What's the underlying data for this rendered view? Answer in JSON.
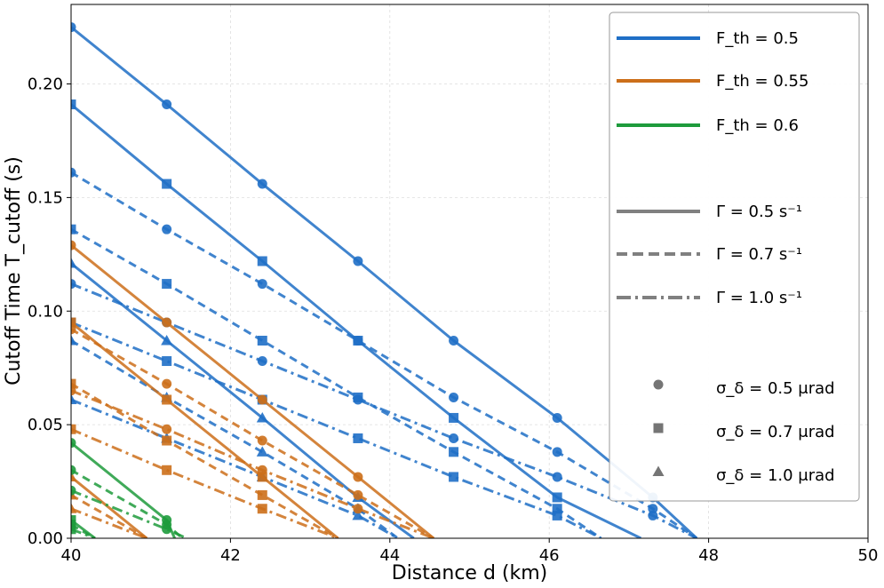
{
  "chart_data": {
    "type": "line",
    "xlabel": "Distance d (km)",
    "ylabel": "Cutoff Time T_cutoff (s)",
    "xlim": [
      40,
      50
    ],
    "ylim": [
      0,
      0.235
    ],
    "xticks": [
      40,
      42,
      44,
      46,
      48,
      50
    ],
    "xtick_labels": [
      "40",
      "42",
      "44",
      "46",
      "48",
      "50"
    ],
    "yticks": [
      0,
      0.05,
      0.1,
      0.15,
      0.2
    ],
    "ytick_labels": [
      "0.00",
      "0.05",
      "0.10",
      "0.15",
      "0.20"
    ],
    "grid": true,
    "legend_position": "top-right",
    "colors": {
      "F_th = 0.5": "#1f6fc6",
      "F_th = 0.55": "#cc6f1a",
      "F_th = 0.6": "#1e9b3c",
      "legend_gray": "#808080"
    },
    "legend": {
      "color_entries": [
        {
          "label": "F_th = 0.5",
          "color": "#1f6fc6"
        },
        {
          "label": "F_th = 0.55",
          "color": "#cc6f1a"
        },
        {
          "label": "F_th = 0.6",
          "color": "#1e9b3c"
        }
      ],
      "style_entries": [
        {
          "label": "Γ = 0.5 s⁻¹",
          "dash": "solid"
        },
        {
          "label": "Γ = 0.7 s⁻¹",
          "dash": "dashed"
        },
        {
          "label": "Γ = 1.0 s⁻¹",
          "dash": "dashdot"
        }
      ],
      "marker_entries": [
        {
          "label": "σ_δ = 0.5 μrad",
          "marker": "circle"
        },
        {
          "label": "σ_δ = 0.7 μrad",
          "marker": "square"
        },
        {
          "label": "σ_δ = 1.0 μrad",
          "marker": "triangle"
        }
      ]
    },
    "series": [
      {
        "fth": "0.5",
        "gamma": "0.5",
        "sigma": "0.5",
        "x": [
          40,
          41.2,
          42.4,
          43.6,
          44.8,
          46.1,
          47.3,
          47.85
        ],
        "y": [
          0.225,
          0.191,
          0.156,
          0.122,
          0.087,
          0.053,
          0.018,
          0
        ]
      },
      {
        "fth": "0.5",
        "gamma": "0.5",
        "sigma": "0.7",
        "x": [
          40,
          41.2,
          42.4,
          43.6,
          44.8,
          46.1,
          47.15
        ],
        "y": [
          0.191,
          0.156,
          0.122,
          0.087,
          0.053,
          0.018,
          0
        ]
      },
      {
        "fth": "0.5",
        "gamma": "0.5",
        "sigma": "1.0",
        "x": [
          40,
          41.2,
          42.4,
          43.6,
          44.3
        ],
        "y": [
          0.121,
          0.087,
          0.053,
          0.018,
          0
        ]
      },
      {
        "fth": "0.5",
        "gamma": "0.7",
        "sigma": "0.5",
        "x": [
          40,
          41.2,
          42.4,
          43.6,
          44.8,
          46.1,
          47.3,
          47.85
        ],
        "y": [
          0.161,
          0.136,
          0.112,
          0.087,
          0.062,
          0.038,
          0.013,
          0
        ]
      },
      {
        "fth": "0.5",
        "gamma": "0.7",
        "sigma": "0.7",
        "x": [
          40,
          41.2,
          42.4,
          43.6,
          44.8,
          46.1,
          46.65
        ],
        "y": [
          0.136,
          0.112,
          0.087,
          0.062,
          0.038,
          0.013,
          0
        ]
      },
      {
        "fth": "0.5",
        "gamma": "0.7",
        "sigma": "1.0",
        "x": [
          40,
          41.2,
          42.4,
          43.6,
          44.1
        ],
        "y": [
          0.087,
          0.062,
          0.038,
          0.013,
          0
        ]
      },
      {
        "fth": "0.5",
        "gamma": "1.0",
        "sigma": "0.5",
        "x": [
          40,
          41.2,
          42.4,
          43.6,
          44.8,
          46.1,
          47.3,
          47.85
        ],
        "y": [
          0.112,
          0.095,
          0.078,
          0.061,
          0.044,
          0.027,
          0.01,
          0
        ]
      },
      {
        "fth": "0.5",
        "gamma": "1.0",
        "sigma": "0.7",
        "x": [
          40,
          41.2,
          42.4,
          43.6,
          44.8,
          46.1,
          46.65
        ],
        "y": [
          0.095,
          0.078,
          0.061,
          0.044,
          0.027,
          0.01,
          0
        ]
      },
      {
        "fth": "0.5",
        "gamma": "1.0",
        "sigma": "1.0",
        "x": [
          40,
          41.2,
          42.4,
          43.6,
          44.1
        ],
        "y": [
          0.061,
          0.044,
          0.027,
          0.01,
          0
        ]
      },
      {
        "fth": "0.55",
        "gamma": "0.5",
        "sigma": "0.5",
        "x": [
          40,
          41.2,
          42.4,
          43.6,
          44.55
        ],
        "y": [
          0.129,
          0.095,
          0.061,
          0.027,
          0
        ]
      },
      {
        "fth": "0.55",
        "gamma": "0.5",
        "sigma": "0.7",
        "x": [
          40,
          41.2,
          42.4,
          43.35
        ],
        "y": [
          0.095,
          0.061,
          0.027,
          0
        ]
      },
      {
        "fth": "0.55",
        "gamma": "0.5",
        "sigma": "1.0",
        "x": [
          40,
          40.95
        ],
        "y": [
          0.027,
          0
        ]
      },
      {
        "fth": "0.55",
        "gamma": "0.7",
        "sigma": "0.5",
        "x": [
          40,
          41.2,
          42.4,
          43.6,
          44.55
        ],
        "y": [
          0.092,
          0.068,
          0.043,
          0.019,
          0
        ]
      },
      {
        "fth": "0.55",
        "gamma": "0.7",
        "sigma": "0.7",
        "x": [
          40,
          41.2,
          42.4,
          43.35
        ],
        "y": [
          0.068,
          0.043,
          0.019,
          0
        ]
      },
      {
        "fth": "0.55",
        "gamma": "0.7",
        "sigma": "1.0",
        "x": [
          40,
          40.95
        ],
        "y": [
          0.019,
          0
        ]
      },
      {
        "fth": "0.55",
        "gamma": "1.0",
        "sigma": "0.5",
        "x": [
          40,
          41.2,
          42.4,
          43.6,
          44.55
        ],
        "y": [
          0.065,
          0.048,
          0.03,
          0.013,
          0
        ]
      },
      {
        "fth": "0.55",
        "gamma": "1.0",
        "sigma": "0.7",
        "x": [
          40,
          41.2,
          42.4,
          43.35
        ],
        "y": [
          0.048,
          0.03,
          0.013,
          0
        ]
      },
      {
        "fth": "0.55",
        "gamma": "1.0",
        "sigma": "1.0",
        "x": [
          40,
          40.95
        ],
        "y": [
          0.013,
          0
        ]
      },
      {
        "fth": "0.6",
        "gamma": "0.5",
        "sigma": "0.5",
        "x": [
          40,
          41.2,
          41.3
        ],
        "y": [
          0.042,
          0.008,
          0
        ]
      },
      {
        "fth": "0.6",
        "gamma": "0.5",
        "sigma": "0.7",
        "x": [
          40,
          40.3
        ],
        "y": [
          0.008,
          0
        ]
      },
      {
        "fth": "0.6",
        "gamma": "0.7",
        "sigma": "0.5",
        "x": [
          40,
          41.2,
          41.4
        ],
        "y": [
          0.03,
          0.006,
          0
        ]
      },
      {
        "fth": "0.6",
        "gamma": "0.7",
        "sigma": "0.7",
        "x": [
          40,
          40.3
        ],
        "y": [
          0.006,
          0
        ]
      },
      {
        "fth": "0.6",
        "gamma": "1.0",
        "sigma": "0.5",
        "x": [
          40,
          41.2,
          41.45
        ],
        "y": [
          0.021,
          0.004,
          0
        ]
      },
      {
        "fth": "0.6",
        "gamma": "1.0",
        "sigma": "0.7",
        "x": [
          40,
          40.3
        ],
        "y": [
          0.004,
          0
        ]
      }
    ]
  }
}
